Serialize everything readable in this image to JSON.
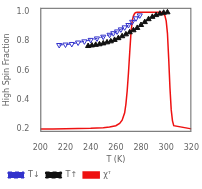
{
  "chart_data": {
    "type": "line",
    "title": "",
    "xlabel": "T (K)",
    "ylabel": "High Spin Fraction",
    "xlim": [
      200,
      320
    ],
    "ylim": [
      0.18,
      1.03
    ],
    "xticks": [
      200,
      220,
      240,
      260,
      280,
      300,
      320
    ],
    "yticks": [
      0.2,
      0.4,
      0.6,
      0.8,
      {
        "value": 1.0,
        "label": "1.0"
      }
    ],
    "grid": false,
    "legend": "lower left",
    "series": [
      {
        "name": "T↓",
        "color": "#3333cc",
        "marker": "triangle-down-open",
        "line_style": "dashed",
        "x": [
          215,
          220,
          225,
          230,
          235,
          240,
          245,
          250,
          255,
          258,
          261,
          264,
          267,
          270,
          273,
          276,
          279
        ],
        "values": [
          0.775,
          0.778,
          0.782,
          0.792,
          0.8,
          0.81,
          0.82,
          0.832,
          0.845,
          0.856,
          0.868,
          0.882,
          0.896,
          0.912,
          0.934,
          0.958,
          0.978
        ]
      },
      {
        "name": "T↑",
        "color": "#111111",
        "marker": "triangle-up",
        "line_style": "dashed",
        "x": [
          238,
          241,
          244,
          247,
          250,
          253,
          256,
          259,
          262,
          265,
          268,
          271,
          274,
          277,
          280,
          283,
          286,
          289,
          292,
          295,
          298,
          301
        ],
        "values": [
          0.768,
          0.772,
          0.776,
          0.78,
          0.786,
          0.793,
          0.8,
          0.81,
          0.822,
          0.835,
          0.848,
          0.862,
          0.876,
          0.892,
          0.912,
          0.932,
          0.952,
          0.968,
          0.98,
          0.99,
          0.996,
          0.999
        ]
      },
      {
        "name": "χᵀ",
        "color": "#ee1111",
        "marker": "none",
        "line_style": "solid",
        "x": [
          200,
          210,
          220,
          230,
          240,
          250,
          255,
          260,
          263,
          265,
          267,
          268,
          269,
          270,
          271,
          272,
          273,
          274,
          275,
          276,
          277,
          295,
          297,
          299,
          300,
          301,
          302,
          303,
          304,
          305,
          306,
          320
        ],
        "values": [
          0.2,
          0.2,
          0.201,
          0.202,
          0.204,
          0.208,
          0.213,
          0.222,
          0.238,
          0.26,
          0.31,
          0.37,
          0.46,
          0.58,
          0.72,
          0.855,
          0.94,
          0.975,
          0.992,
          0.998,
          1.0,
          1.0,
          0.998,
          0.975,
          0.94,
          0.855,
          0.68,
          0.48,
          0.33,
          0.255,
          0.222,
          0.2
        ]
      }
    ]
  }
}
